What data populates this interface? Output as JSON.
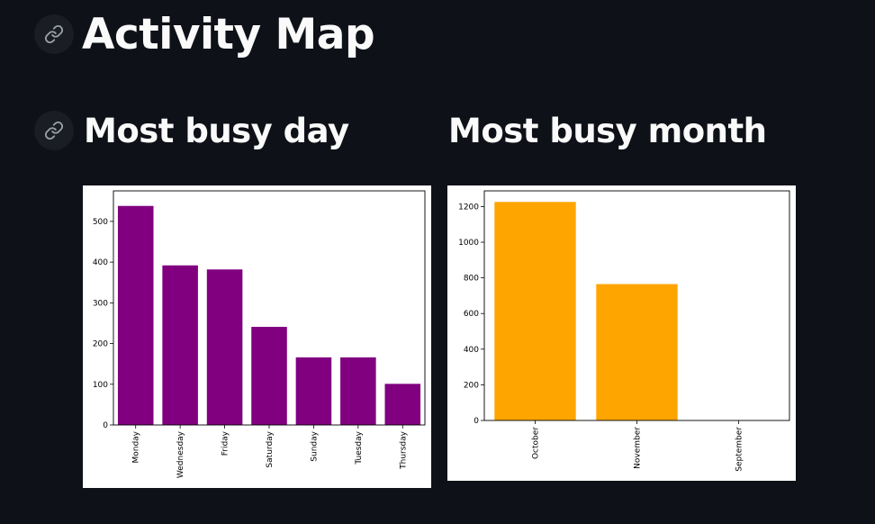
{
  "page": {
    "title": "Activity Map",
    "day_heading": "Most busy day",
    "month_heading": "Most busy month"
  },
  "colors": {
    "background": "#0e1117",
    "day_bar": "#800080",
    "month_bar": "#ffa500"
  },
  "icons": {
    "title_anchor": "link-icon",
    "section_anchor": "link-icon"
  },
  "chart_data": [
    {
      "type": "bar",
      "title": "",
      "categories": [
        "Monday",
        "Wednesday",
        "Friday",
        "Saturday",
        "Sunday",
        "Tuesday",
        "Thursday"
      ],
      "values": [
        538,
        392,
        382,
        241,
        166,
        166,
        101
      ],
      "ylim": [
        0,
        575
      ],
      "yticks": [
        0,
        100,
        200,
        300,
        400,
        500
      ],
      "xlabel": "",
      "ylabel": "",
      "color": "#800080",
      "xtick_rotation": 90
    },
    {
      "type": "bar",
      "title": "",
      "categories": [
        "October",
        "November",
        "September"
      ],
      "values": [
        1226,
        765,
        1
      ],
      "ylim": [
        0,
        1288
      ],
      "yticks": [
        0,
        200,
        400,
        600,
        800,
        1000,
        1200
      ],
      "xlabel": "",
      "ylabel": "",
      "color": "#ffa500",
      "xtick_rotation": 90
    }
  ]
}
